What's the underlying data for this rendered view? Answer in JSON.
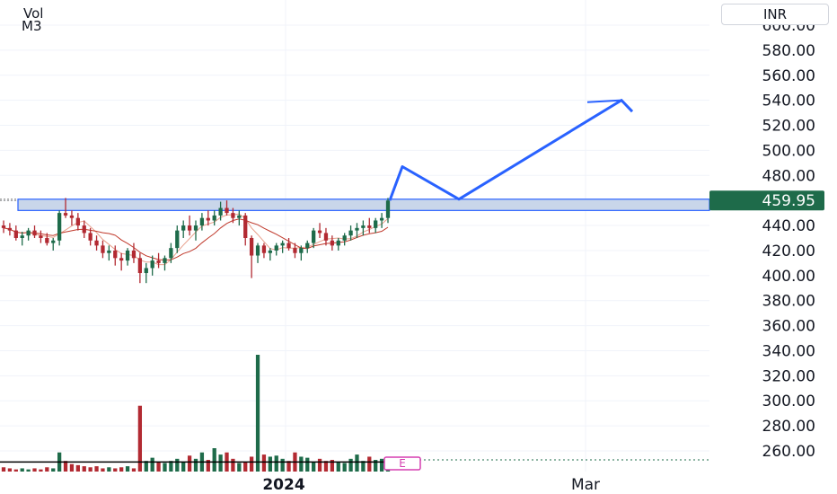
{
  "header": {
    "vol_label": "Vol",
    "ma_label": "M3",
    "currency": "INR"
  },
  "colors": {
    "up": "#1e6b4a",
    "down": "#b22a32",
    "drawing": "#2962ff",
    "zone_fill": "#c9d6ea",
    "last_price_bg": "#1e6b4a",
    "grid": "#f0f3fa",
    "ma_fast": "#e8a08c",
    "ma_slow": "#c0392b",
    "earnings_marker": "#d53fb0"
  },
  "chart_data": {
    "type": "candlestick",
    "symbol_currency": "INR",
    "y_axis": {
      "ticks": [
        "260.00",
        "280.00",
        "300.00",
        "320.00",
        "340.00",
        "360.00",
        "380.00",
        "400.00",
        "420.00",
        "440.00",
        "460.00",
        "480.00",
        "500.00",
        "520.00",
        "540.00",
        "560.00",
        "580.00",
        "600.00"
      ],
      "range": [
        250,
        605
      ]
    },
    "x_axis": {
      "labels": [
        "2024",
        "Mar"
      ]
    },
    "last_price": "459.95",
    "resistance_zone": [
      452,
      461
    ],
    "projection_path": [
      [
        0,
        460
      ],
      [
        1,
        487
      ],
      [
        2,
        461
      ],
      [
        3,
        540
      ],
      [
        4,
        531
      ]
    ],
    "candles": [
      [
        440,
        444,
        434,
        438
      ],
      [
        438,
        442,
        432,
        436
      ],
      [
        436,
        440,
        428,
        430
      ],
      [
        430,
        435,
        424,
        432
      ],
      [
        432,
        438,
        428,
        436
      ],
      [
        436,
        440,
        430,
        432
      ],
      [
        432,
        436,
        426,
        430
      ],
      [
        430,
        434,
        424,
        426
      ],
      [
        426,
        430,
        420,
        428
      ],
      [
        428,
        452,
        424,
        450
      ],
      [
        450,
        462,
        446,
        448
      ],
      [
        448,
        452,
        440,
        446
      ],
      [
        446,
        450,
        436,
        440
      ],
      [
        440,
        444,
        430,
        434
      ],
      [
        434,
        438,
        424,
        428
      ],
      [
        428,
        432,
        420,
        424
      ],
      [
        424,
        428,
        414,
        418
      ],
      [
        418,
        424,
        412,
        420
      ],
      [
        420,
        424,
        408,
        414
      ],
      [
        414,
        418,
        404,
        412
      ],
      [
        412,
        422,
        408,
        420
      ],
      [
        420,
        426,
        410,
        414
      ],
      [
        414,
        418,
        394,
        402
      ],
      [
        402,
        410,
        394,
        406
      ],
      [
        406,
        416,
        400,
        412
      ],
      [
        412,
        418,
        406,
        410
      ],
      [
        410,
        416,
        404,
        414
      ],
      [
        414,
        426,
        410,
        422
      ],
      [
        422,
        440,
        418,
        436
      ],
      [
        436,
        444,
        430,
        440
      ],
      [
        440,
        448,
        432,
        436
      ],
      [
        436,
        444,
        428,
        440
      ],
      [
        440,
        450,
        436,
        446
      ],
      [
        446,
        452,
        440,
        444
      ],
      [
        444,
        452,
        440,
        448
      ],
      [
        448,
        459,
        444,
        454
      ],
      [
        454,
        460,
        448,
        450
      ],
      [
        450,
        454,
        442,
        446
      ],
      [
        446,
        452,
        440,
        448
      ],
      [
        448,
        450,
        424,
        430
      ],
      [
        430,
        432,
        398,
        416
      ],
      [
        416,
        426,
        410,
        424
      ],
      [
        424,
        426,
        414,
        418
      ],
      [
        418,
        422,
        412,
        420
      ],
      [
        420,
        426,
        416,
        424
      ],
      [
        424,
        428,
        418,
        426
      ],
      [
        426,
        430,
        420,
        422
      ],
      [
        422,
        426,
        414,
        418
      ],
      [
        418,
        424,
        412,
        422
      ],
      [
        422,
        428,
        418,
        426
      ],
      [
        426,
        438,
        422,
        436
      ],
      [
        436,
        442,
        430,
        434
      ],
      [
        434,
        438,
        424,
        428
      ],
      [
        428,
        432,
        420,
        424
      ],
      [
        424,
        430,
        420,
        428
      ],
      [
        428,
        434,
        424,
        432
      ],
      [
        432,
        440,
        428,
        436
      ],
      [
        436,
        442,
        430,
        438
      ],
      [
        438,
        444,
        432,
        440
      ],
      [
        440,
        446,
        434,
        438
      ],
      [
        438,
        446,
        434,
        444
      ],
      [
        444,
        450,
        438,
        446
      ],
      [
        446,
        462,
        442,
        459.95
      ]
    ],
    "volume": [
      4,
      3,
      2,
      3,
      2,
      3,
      2,
      4,
      3,
      18,
      10,
      7,
      6,
      5,
      4,
      5,
      3,
      4,
      3,
      4,
      5,
      3,
      62,
      10,
      13,
      9,
      8,
      10,
      12,
      9,
      15,
      12,
      18,
      11,
      22,
      16,
      18,
      12,
      8,
      9,
      14,
      110,
      16,
      14,
      15,
      12,
      10,
      18,
      14,
      13,
      9,
      12,
      10,
      11,
      9,
      8,
      12,
      16,
      10,
      14,
      11,
      12,
      9
    ],
    "volume_ma": 9,
    "earnings_marker": "E"
  }
}
